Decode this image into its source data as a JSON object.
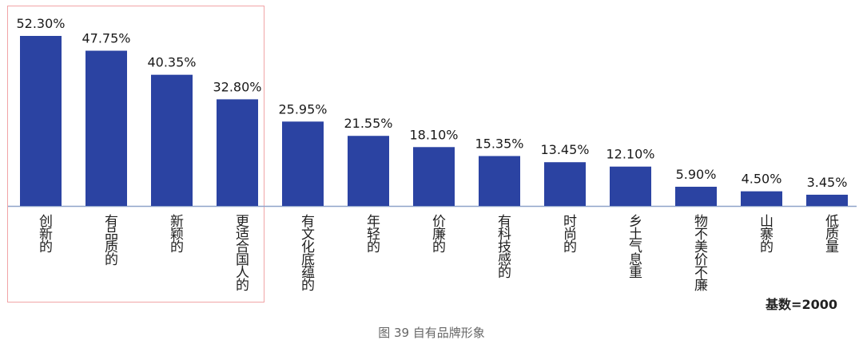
{
  "chart_data": {
    "type": "bar",
    "categories": [
      "创新的",
      "有品质的",
      "新颖的",
      "更适合国人的",
      "有文化底蕴的",
      "年轻的",
      "价廉的",
      "有科技感的",
      "时尚的",
      "乡土气息重",
      "物不美价不廉",
      "山寨的",
      "低质量"
    ],
    "values": [
      52.3,
      47.75,
      40.35,
      32.8,
      25.95,
      21.55,
      18.1,
      15.35,
      13.45,
      12.1,
      5.9,
      4.5,
      3.45
    ],
    "value_labels": [
      "52.30%",
      "47.75%",
      "40.35%",
      "32.80%",
      "25.95%",
      "21.55%",
      "18.10%",
      "15.35%",
      "13.45%",
      "12.10%",
      "5.90%",
      "4.50%",
      "3.45%"
    ],
    "ylim": [
      0,
      52.3
    ],
    "bar_color": "#2b43a2",
    "highlight_color": "#f1a4a6",
    "highlighted_categories": 4,
    "base_note": "基数=2000",
    "caption": "图 39 自有品牌形象"
  }
}
